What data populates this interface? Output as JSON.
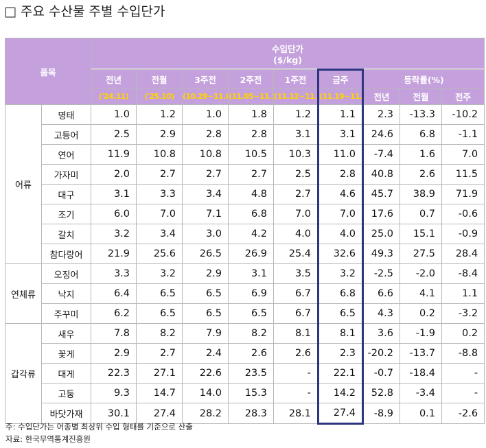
{
  "title": "□ 주요 수산물 주별 수입단가",
  "header": {
    "item": "품목",
    "price_title": "수입단가",
    "price_unit": "($/kg)",
    "columns": [
      {
        "label": "전년",
        "period": "('24.11)"
      },
      {
        "label": "전월",
        "period": "('25.10)"
      },
      {
        "label": "3주전",
        "period": "(10.29~11.04)"
      },
      {
        "label": "2주전",
        "period": "(11.05~11.11)"
      },
      {
        "label": "1주전",
        "period": "(11.12~11.18)"
      },
      {
        "label": "금주",
        "period": "(11.19~11.25)"
      }
    ],
    "change_title": "등락률(%)",
    "change_columns": [
      "전년",
      "전월",
      "전주"
    ]
  },
  "groups": [
    {
      "name": "어류",
      "rows": [
        {
          "item": "명태",
          "cells": [
            "1.0",
            "1.2",
            "1.0",
            "1.8",
            "1.2",
            "1.1",
            "2.3",
            "-13.3",
            "-10.2"
          ]
        },
        {
          "item": "고등어",
          "cells": [
            "2.5",
            "2.9",
            "2.8",
            "2.8",
            "3.1",
            "3.1",
            "24.6",
            "6.8",
            "-1.1"
          ]
        },
        {
          "item": "연어",
          "cells": [
            "11.9",
            "10.8",
            "10.8",
            "10.5",
            "10.3",
            "11.0",
            "-7.4",
            "1.6",
            "7.0"
          ]
        },
        {
          "item": "가자미",
          "cells": [
            "2.0",
            "2.7",
            "2.7",
            "2.7",
            "2.5",
            "2.8",
            "40.8",
            "2.6",
            "11.5"
          ]
        },
        {
          "item": "대구",
          "cells": [
            "3.1",
            "3.3",
            "3.4",
            "4.8",
            "2.7",
            "4.6",
            "45.7",
            "38.9",
            "71.9"
          ]
        },
        {
          "item": "조기",
          "cells": [
            "6.0",
            "7.0",
            "7.1",
            "6.8",
            "7.0",
            "7.0",
            "17.6",
            "0.7",
            "-0.6"
          ]
        },
        {
          "item": "갈치",
          "cells": [
            "3.2",
            "3.4",
            "3.0",
            "4.2",
            "4.0",
            "4.0",
            "25.0",
            "15.1",
            "-0.9"
          ]
        },
        {
          "item": "참다랑어",
          "cells": [
            "21.9",
            "25.6",
            "26.5",
            "26.9",
            "25.4",
            "32.6",
            "49.3",
            "27.5",
            "28.4"
          ]
        }
      ]
    },
    {
      "name": "연체류",
      "rows": [
        {
          "item": "오징어",
          "cells": [
            "3.3",
            "3.2",
            "2.9",
            "3.1",
            "3.5",
            "3.2",
            "-2.5",
            "-2.0",
            "-8.4"
          ]
        },
        {
          "item": "낙지",
          "cells": [
            "6.4",
            "6.5",
            "6.5",
            "6.9",
            "6.7",
            "6.8",
            "6.6",
            "4.1",
            "1.1"
          ]
        },
        {
          "item": "주꾸미",
          "cells": [
            "6.2",
            "6.5",
            "6.5",
            "6.5",
            "6.7",
            "6.5",
            "4.3",
            "0.2",
            "-3.2"
          ]
        }
      ]
    },
    {
      "name": "갑각류",
      "rows": [
        {
          "item": "새우",
          "cells": [
            "7.8",
            "8.2",
            "7.9",
            "8.2",
            "8.1",
            "8.1",
            "3.6",
            "-1.9",
            "0.2"
          ]
        },
        {
          "item": "꽃게",
          "cells": [
            "2.9",
            "2.7",
            "2.4",
            "2.6",
            "2.6",
            "2.3",
            "-20.2",
            "-13.7",
            "-8.8"
          ]
        },
        {
          "item": "대게",
          "cells": [
            "22.3",
            "27.1",
            "22.6",
            "23.5",
            "-",
            "22.1",
            "-0.7",
            "-18.4",
            "-"
          ]
        },
        {
          "item": "고둥",
          "cells": [
            "9.3",
            "14.7",
            "14.0",
            "15.3",
            "-",
            "14.2",
            "52.8",
            "-3.4",
            "-"
          ]
        },
        {
          "item": "바닷가재",
          "cells": [
            "30.1",
            "27.4",
            "28.2",
            "28.3",
            "28.1",
            "27.4",
            "-8.9",
            "0.1",
            "-2.6"
          ]
        }
      ]
    }
  ],
  "notes": [
    "주: 수입단가는 어종별 최상위 수입 형태를 기준으로 산출",
    "자료: 한국무역통계진흥원"
  ]
}
